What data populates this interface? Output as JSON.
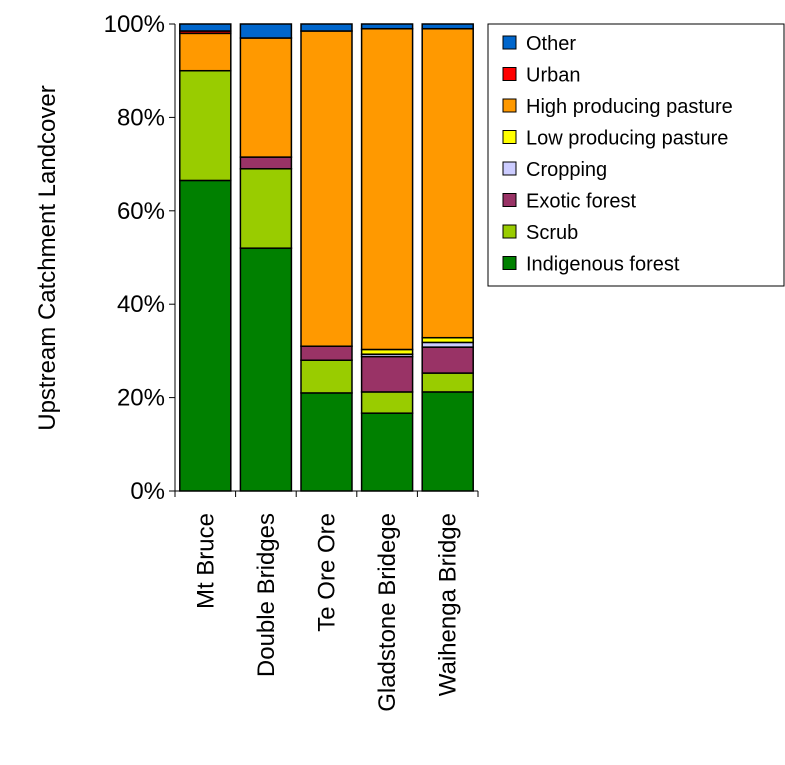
{
  "chart_data": {
    "type": "bar",
    "stacked": "percent",
    "title": "",
    "xlabel": "",
    "ylabel": "Upstream Catchment Landcover",
    "ylim": [
      0,
      100
    ],
    "y_ticks": [
      "0%",
      "20%",
      "40%",
      "60%",
      "80%",
      "100%"
    ],
    "grid": false,
    "legend_position": "right",
    "categories": [
      "Mt Bruce",
      "Double Bridges",
      "Te Ore Ore",
      "Gladstone Bridege",
      "Waihenga Bridge"
    ],
    "series": [
      {
        "name": "Indigenous forest",
        "color": "#008000",
        "values": [
          66.5,
          52.0,
          21.0,
          16.5,
          21.0
        ]
      },
      {
        "name": "Scrub",
        "color": "#99CC00",
        "values": [
          23.5,
          17.0,
          7.0,
          4.5,
          4.0
        ]
      },
      {
        "name": "Exotic forest",
        "color": "#993366",
        "values": [
          0.0,
          2.5,
          3.0,
          7.5,
          5.5
        ]
      },
      {
        "name": "Cropping",
        "color": "#CCCCFF",
        "values": [
          0.0,
          0.0,
          0.0,
          0.5,
          1.0
        ]
      },
      {
        "name": "Low  producing pasture",
        "color": "#FFFF00",
        "values": [
          0.0,
          0.0,
          0.0,
          1.0,
          1.0
        ]
      },
      {
        "name": "High producing pasture",
        "color": "#FF9900",
        "values": [
          8.0,
          25.5,
          67.5,
          68.0,
          65.5
        ]
      },
      {
        "name": "Urban",
        "color": "#FF0000",
        "values": [
          0.5,
          0.0,
          0.0,
          0.0,
          0.0
        ]
      },
      {
        "name": "Other",
        "color": "#0066CC",
        "values": [
          1.5,
          3.0,
          1.5,
          1.0,
          1.0
        ]
      }
    ],
    "legend_order": [
      "Other",
      "Urban",
      "High producing pasture",
      "Low  producing pasture",
      "Cropping",
      "Exotic forest",
      "Scrub",
      "Indigenous forest"
    ]
  }
}
